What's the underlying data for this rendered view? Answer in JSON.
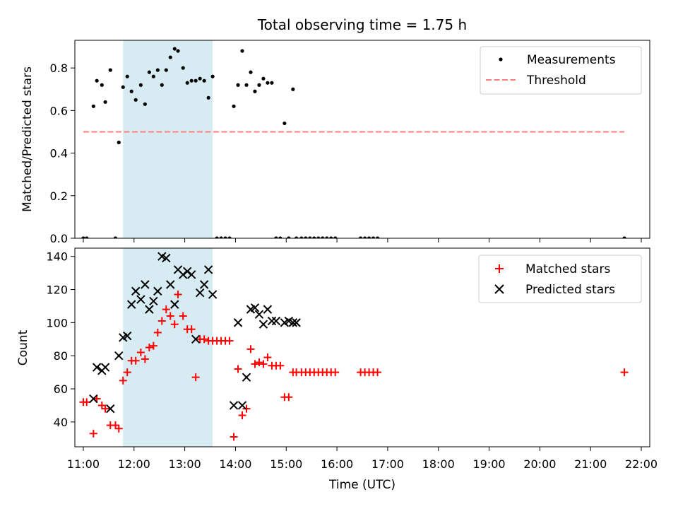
{
  "chart_data": [
    {
      "type": "scatter",
      "title": "Total observing time = 1.75 h",
      "xlabel": "",
      "ylabel": "Matched/Predicted stars",
      "xlim": [
        "10:50",
        "22:10"
      ],
      "ylim": [
        0,
        0.93
      ],
      "yticks": [
        0.0,
        0.2,
        0.4,
        0.6,
        0.8
      ],
      "xticks": [
        "11:00",
        "12:00",
        "13:00",
        "14:00",
        "15:00",
        "16:00",
        "17:00",
        "18:00",
        "19:00",
        "20:00",
        "21:00",
        "22:00"
      ],
      "shaded_interval": [
        "11:47",
        "13:33"
      ],
      "shade_color": "#add8e6",
      "legend_position": "top-right",
      "series": [
        {
          "name": "Measurements",
          "marker": "dot",
          "color": "#000000",
          "x": [
            "11:00",
            "11:04",
            "11:12",
            "11:16",
            "11:22",
            "11:26",
            "11:32",
            "11:38",
            "11:42",
            "11:47",
            "11:52",
            "11:57",
            "12:02",
            "12:08",
            "12:13",
            "12:18",
            "12:23",
            "12:28",
            "12:33",
            "12:38",
            "12:43",
            "12:48",
            "12:52",
            "12:58",
            "13:03",
            "13:08",
            "13:13",
            "13:18",
            "13:23",
            "13:28",
            "13:33",
            "13:38",
            "13:43",
            "13:48",
            "13:53",
            "13:58",
            "14:03",
            "14:08",
            "14:13",
            "14:18",
            "14:23",
            "14:28",
            "14:33",
            "14:38",
            "14:43",
            "14:48",
            "14:53",
            "14:58",
            "15:03",
            "15:08",
            "15:12",
            "15:18",
            "15:23",
            "15:28",
            "15:33",
            "15:38",
            "15:43",
            "15:48",
            "15:53",
            "15:58",
            "16:28",
            "16:33",
            "16:38",
            "16:43",
            "16:48",
            "21:40"
          ],
          "y": [
            0,
            0,
            0.62,
            0.74,
            0.72,
            0.64,
            0.79,
            0,
            0.45,
            0.71,
            0.76,
            0.69,
            0.65,
            0.72,
            0.63,
            0.78,
            0.76,
            0.79,
            0.72,
            0.79,
            0.85,
            0.89,
            0.88,
            0.8,
            0.73,
            0.74,
            0.74,
            0.75,
            0.74,
            0.66,
            0.76,
            0,
            0,
            0,
            0,
            0.62,
            0.72,
            0.88,
            0.72,
            0.78,
            0.69,
            0.72,
            0.75,
            0.73,
            0.73,
            0,
            0,
            0.54,
            0,
            0.7,
            0,
            0,
            0,
            0,
            0,
            0,
            0,
            0,
            0,
            0,
            0,
            0,
            0,
            0,
            0,
            0
          ]
        },
        {
          "name": "Threshold",
          "marker": "dashed-line",
          "color": "#ff7f7f",
          "x": [
            "11:00",
            "21:40"
          ],
          "y": [
            0.5,
            0.5
          ]
        }
      ]
    },
    {
      "type": "scatter",
      "title": "",
      "xlabel": "Time (UTC)",
      "ylabel": "Count",
      "xlim": [
        "10:50",
        "22:10"
      ],
      "ylim": [
        25,
        145
      ],
      "yticks": [
        40,
        60,
        80,
        100,
        120,
        140
      ],
      "xticks": [
        "11:00",
        "12:00",
        "13:00",
        "14:00",
        "15:00",
        "16:00",
        "17:00",
        "18:00",
        "19:00",
        "20:00",
        "21:00",
        "22:00"
      ],
      "shaded_interval": [
        "11:47",
        "13:33"
      ],
      "shade_color": "#add8e6",
      "legend_position": "top-right",
      "series": [
        {
          "name": "Matched stars",
          "marker": "plus",
          "color": "#ff0000",
          "x": [
            "11:00",
            "11:04",
            "11:12",
            "11:16",
            "11:22",
            "11:26",
            "11:32",
            "11:38",
            "11:42",
            "11:47",
            "11:52",
            "11:57",
            "12:02",
            "12:08",
            "12:13",
            "12:18",
            "12:23",
            "12:28",
            "12:33",
            "12:38",
            "12:43",
            "12:48",
            "12:52",
            "12:58",
            "13:03",
            "13:08",
            "13:13",
            "13:18",
            "13:23",
            "13:28",
            "13:33",
            "13:38",
            "13:43",
            "13:48",
            "13:53",
            "13:58",
            "14:03",
            "14:08",
            "14:13",
            "14:18",
            "14:23",
            "14:28",
            "14:33",
            "14:38",
            "14:43",
            "14:48",
            "14:53",
            "14:58",
            "15:03",
            "15:08",
            "15:12",
            "15:18",
            "15:23",
            "15:28",
            "15:33",
            "15:38",
            "15:43",
            "15:48",
            "15:53",
            "15:58",
            "16:28",
            "16:33",
            "16:38",
            "16:43",
            "16:48",
            "21:40"
          ],
          "y": [
            52,
            52,
            33,
            54,
            50,
            48,
            38,
            38,
            36,
            65,
            70,
            77,
            77,
            82,
            78,
            85,
            86,
            94,
            101,
            108,
            104,
            99,
            117,
            104,
            96,
            96,
            67,
            90,
            90,
            89,
            89,
            89,
            89,
            89,
            89,
            31,
            72,
            44,
            48,
            84,
            75,
            76,
            75,
            79,
            74,
            74,
            74,
            55,
            55,
            70,
            70,
            70,
            70,
            70,
            70,
            70,
            70,
            70,
            70,
            70,
            70,
            70,
            70,
            70,
            70,
            70
          ]
        },
        {
          "name": "Predicted stars",
          "marker": "x",
          "color": "#000000",
          "x": [
            "11:12",
            "11:16",
            "11:22",
            "11:26",
            "11:32",
            "11:42",
            "11:47",
            "11:52",
            "11:57",
            "12:02",
            "12:08",
            "12:13",
            "12:18",
            "12:23",
            "12:28",
            "12:33",
            "12:38",
            "12:43",
            "12:48",
            "12:52",
            "12:58",
            "13:03",
            "13:08",
            "13:13",
            "13:18",
            "13:23",
            "13:28",
            "13:33",
            "13:58",
            "14:03",
            "14:08",
            "14:13",
            "14:18",
            "14:23",
            "14:28",
            "14:33",
            "14:38",
            "14:43",
            "14:48",
            "14:58",
            "15:03",
            "15:08",
            "15:12"
          ],
          "y": [
            54,
            73,
            71,
            73,
            48,
            80,
            91,
            92,
            111,
            119,
            114,
            123,
            108,
            113,
            119,
            140,
            139,
            123,
            111,
            132,
            129,
            131,
            129,
            90,
            118,
            123,
            132,
            117,
            50,
            100,
            50,
            67,
            108,
            109,
            105,
            99,
            108,
            101,
            101,
            100,
            101,
            100,
            100
          ]
        }
      ]
    }
  ]
}
